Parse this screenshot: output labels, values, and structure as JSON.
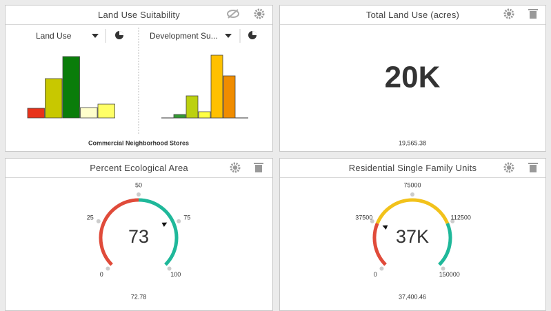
{
  "panels": [
    {
      "title": "Land Use Suitability",
      "caption": "Commercial Neighborhood Stores",
      "charts": [
        {
          "type": "bar",
          "selector": "Land Use",
          "ylim": [
            0,
            100
          ],
          "values": [
            14,
            57,
            89,
            15,
            20
          ],
          "colors": [
            "#e8321a",
            "#c8c800",
            "#0a7d0a",
            "#ffffcc",
            "#ffff66"
          ]
        },
        {
          "type": "bar",
          "selector": "Development Su...",
          "ylim": [
            0,
            100
          ],
          "values": [
            5,
            32,
            9,
            91,
            61
          ],
          "colors": [
            "#339933",
            "#bcd10f",
            "#ffff44",
            "#ffc000",
            "#f08c00"
          ]
        }
      ]
    },
    {
      "title": "Total Land Use (acres)",
      "display": "20K",
      "value": "19,565.38"
    },
    {
      "title": "Percent Ecological Area",
      "type": "gauge",
      "range": [
        0,
        100
      ],
      "ticks": [
        0,
        25,
        50,
        75,
        100
      ],
      "value": 72.78,
      "display": "73",
      "bands": [
        {
          "to": 50,
          "color": "#e04b3a"
        },
        {
          "to": 100,
          "color": "#1fb89a"
        }
      ]
    },
    {
      "title": "Residential Single Family Units",
      "type": "gauge",
      "range": [
        0,
        150000
      ],
      "ticks": [
        0,
        37500,
        75000,
        112500,
        150000
      ],
      "value": 37400.46,
      "value_label": "37,400.46",
      "display": "37K",
      "bands": [
        {
          "to": 37500,
          "color": "#e04b3a"
        },
        {
          "to": 112500,
          "color": "#f2c21b"
        },
        {
          "to": 150000,
          "color": "#1fb89a"
        }
      ]
    }
  ]
}
